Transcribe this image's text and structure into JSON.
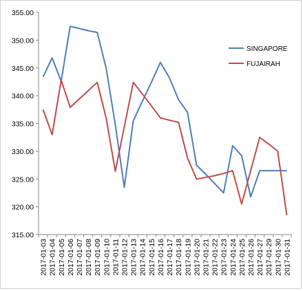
{
  "chart_data": {
    "type": "line",
    "title": "",
    "xlabel": "",
    "ylabel": "",
    "ylim": [
      315,
      355
    ],
    "y_ticks": [
      "315.00",
      "320.00",
      "325.00",
      "330.00",
      "335.00",
      "340.00",
      "345.00",
      "350.00",
      "355.00"
    ],
    "grid": false,
    "legend_position": "right",
    "categories": [
      "2017-01-03",
      "2017-01-04",
      "2017-01-05",
      "2017-01-06",
      "2017-01-07",
      "2017-01-08",
      "2017-01-09",
      "2017-01-10",
      "2017-01-11",
      "2017-01-12",
      "2017-01-13",
      "2017-01-14",
      "2017-01-15",
      "2017-01-16",
      "2017-01-17",
      "2017-01-18",
      "2017-01-19",
      "2017-01-20",
      "2017-01-21",
      "2017-01-22",
      "2017-01-23",
      "2017-01-24",
      "2017-01-25",
      "2017-01-26",
      "2017-01-27",
      "2017-01-29",
      "2017-01-30",
      "2017-01-31"
    ],
    "series": [
      {
        "name": "SINGAPORE",
        "color": "#4a7ebb",
        "values": [
          343.4,
          346.8,
          342.6,
          352.5,
          352.1,
          351.7,
          351.4,
          344.9,
          334.8,
          323.5,
          335.5,
          339.0,
          342.4,
          346.0,
          343.2,
          339.3,
          337.0,
          327.5,
          325.9,
          324.2,
          322.5,
          331.0,
          329.2,
          321.8,
          326.5,
          326.5,
          326.5,
          326.5
        ]
      },
      {
        "name": "FUJAIRAH",
        "color": "#be4b48",
        "values": [
          337.5,
          333.0,
          342.8,
          337.9,
          339.4,
          340.9,
          342.4,
          335.9,
          326.4,
          334.4,
          342.4,
          340.3,
          338.2,
          336.0,
          335.6,
          335.2,
          328.8,
          325.0,
          325.3,
          325.6,
          326.0,
          326.5,
          320.5,
          326.5,
          332.5,
          331.3,
          330.0,
          318.5
        ]
      }
    ]
  }
}
